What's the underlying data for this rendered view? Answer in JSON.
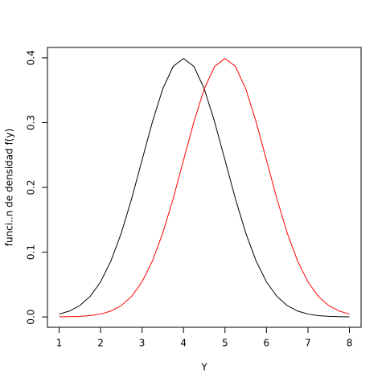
{
  "chart_data": {
    "type": "line",
    "x_label": "Y",
    "y_label": "funci..n de densidad f(y)",
    "x": [
      1,
      1.25,
      1.5,
      1.75,
      2,
      2.25,
      2.5,
      2.75,
      3,
      3.25,
      3.5,
      3.75,
      4,
      4.25,
      4.5,
      4.75,
      5,
      5.25,
      5.5,
      5.75,
      6,
      6.25,
      6.5,
      6.75,
      7,
      7.25,
      7.5,
      7.75,
      8
    ],
    "series": [
      {
        "color": "#000000",
        "values": [
          0.0044,
          0.0091,
          0.0175,
          0.0317,
          0.054,
          0.0863,
          0.1295,
          0.1826,
          0.242,
          0.3011,
          0.3521,
          0.3867,
          0.3989,
          0.3867,
          0.3521,
          0.3011,
          0.242,
          0.1826,
          0.1295,
          0.0863,
          0.054,
          0.0317,
          0.0175,
          0.0091,
          0.0044,
          0.002,
          0.0009,
          0.0004,
          0.0001
        ]
      },
      {
        "color": "#ff0000",
        "values": [
          0.0001,
          0.0004,
          0.0009,
          0.002,
          0.0044,
          0.0091,
          0.0175,
          0.0317,
          0.054,
          0.0863,
          0.1295,
          0.1826,
          0.242,
          0.3011,
          0.3521,
          0.3867,
          0.3989,
          0.3867,
          0.3521,
          0.3011,
          0.242,
          0.1826,
          0.1295,
          0.0863,
          0.054,
          0.0317,
          0.0175,
          0.0091,
          0.0044
        ]
      }
    ],
    "xlim": [
      0.72,
      8.28
    ],
    "ylim": [
      -0.016,
      0.416
    ],
    "xticks": [
      1,
      2,
      3,
      4,
      5,
      6,
      7,
      8
    ],
    "yticks": [
      {
        "value": 0,
        "label": "0.0"
      },
      0.1,
      0.2,
      0.3,
      0.4
    ],
    "grid": false
  }
}
